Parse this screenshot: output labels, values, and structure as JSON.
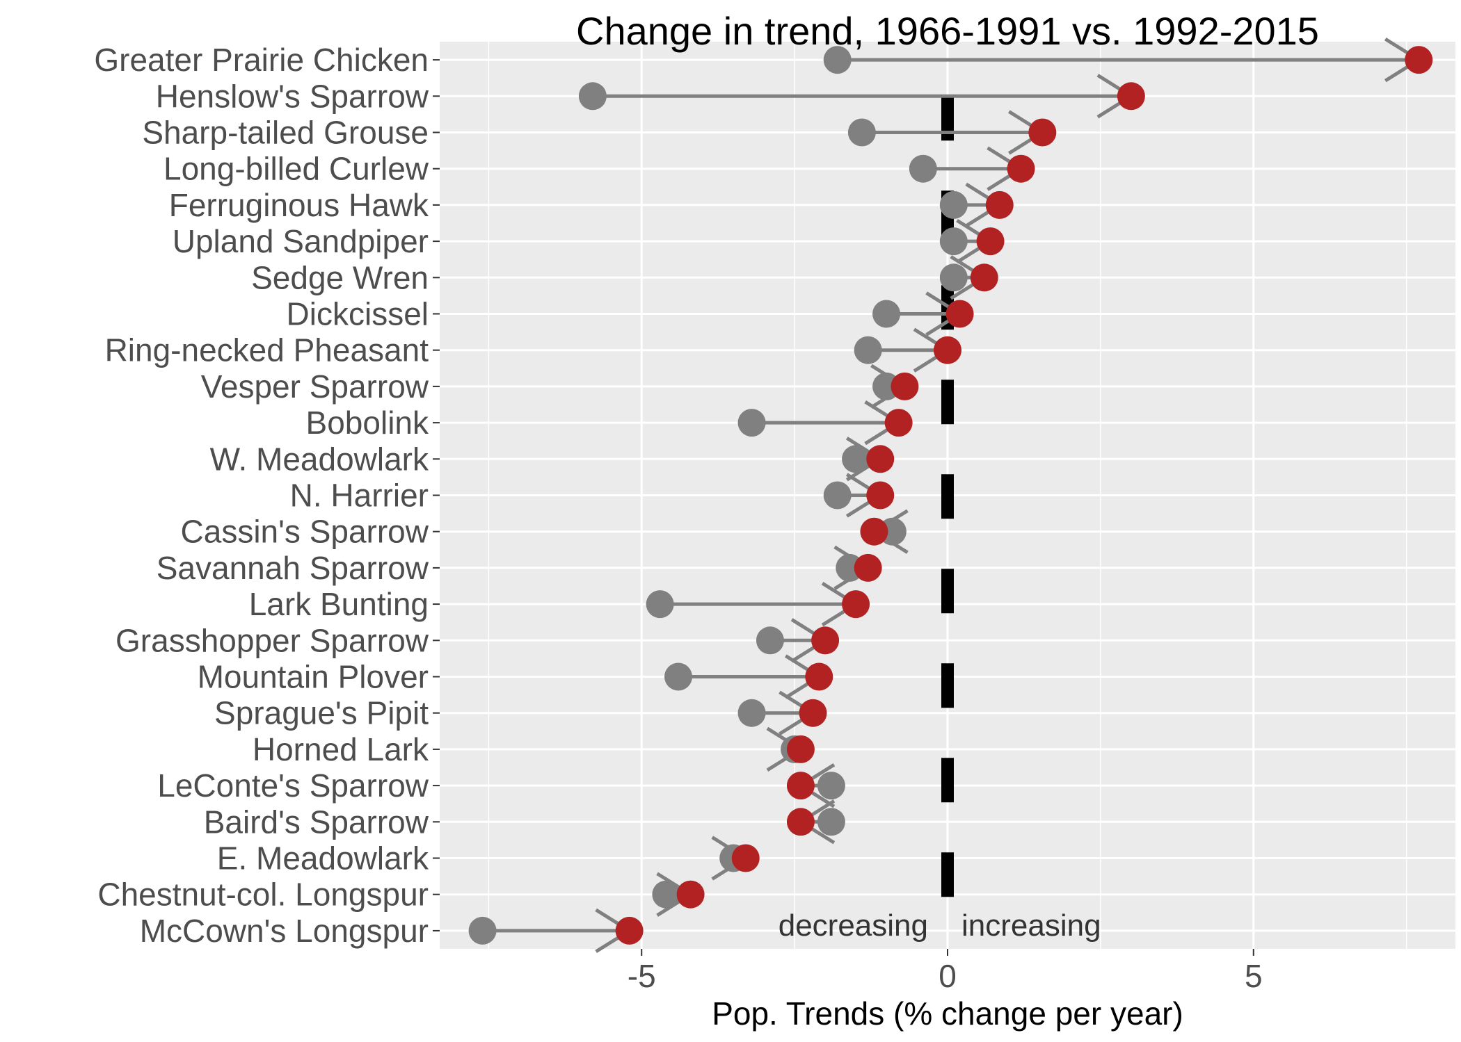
{
  "chart_data": {
    "type": "dumbbell",
    "title": "Change in trend, 1966-1991 vs. 1992-2015",
    "xlabel": "Pop. Trends (% change per year)",
    "ylabel": "",
    "xlim": [
      -8.3,
      8.3
    ],
    "xticks": [
      -5,
      0,
      5
    ],
    "xtick_labels": [
      "-5",
      "0",
      "5"
    ],
    "grid": true,
    "reference_line_x": 0,
    "annotations": {
      "left": "decreasing",
      "right": "increasing"
    },
    "colors": {
      "panel": "#ebebeb",
      "grid": "#ffffff",
      "early_point": "#808080",
      "late_point": "#b22222",
      "segment": "#808080",
      "reference_line": "#000000"
    },
    "categories": [
      "Greater Prairie Chicken",
      "Henslow's Sparrow",
      "Sharp-tailed Grouse",
      "Long-billed Curlew",
      "Ferruginous Hawk",
      "Upland Sandpiper",
      "Sedge Wren",
      "Dickcissel",
      "Ring-necked Pheasant",
      "Vesper Sparrow",
      "Bobolink",
      "W. Meadowlark",
      "N. Harrier",
      "Cassin's Sparrow",
      "Savannah Sparrow",
      "Lark Bunting",
      "Grasshopper Sparrow",
      "Mountain Plover",
      "Sprague's Pipit",
      "Horned Lark",
      "LeConte's Sparrow",
      "Baird's Sparrow",
      "E. Meadowlark",
      "Chestnut-col. Longspur",
      "McCown's Longspur"
    ],
    "series": [
      {
        "period": "1966-1991",
        "values": [
          -1.8,
          -5.8,
          -1.4,
          -0.4,
          0.1,
          0.1,
          0.1,
          -1.0,
          -1.3,
          -1.0,
          -3.2,
          -1.5,
          -1.8,
          -0.9,
          -1.6,
          -4.7,
          -2.9,
          -4.4,
          -3.2,
          -2.5,
          -1.9,
          -1.9,
          -3.5,
          -4.6,
          -7.6
        ]
      },
      {
        "period": "1992-2015",
        "values": [
          7.7,
          3.0,
          1.55,
          1.2,
          0.85,
          0.7,
          0.6,
          0.2,
          0.0,
          -0.7,
          -0.8,
          -1.1,
          -1.1,
          -1.2,
          -1.3,
          -1.5,
          -2.0,
          -2.1,
          -2.2,
          -2.4,
          -2.4,
          -2.4,
          -3.3,
          -4.2,
          -5.2
        ]
      }
    ]
  }
}
